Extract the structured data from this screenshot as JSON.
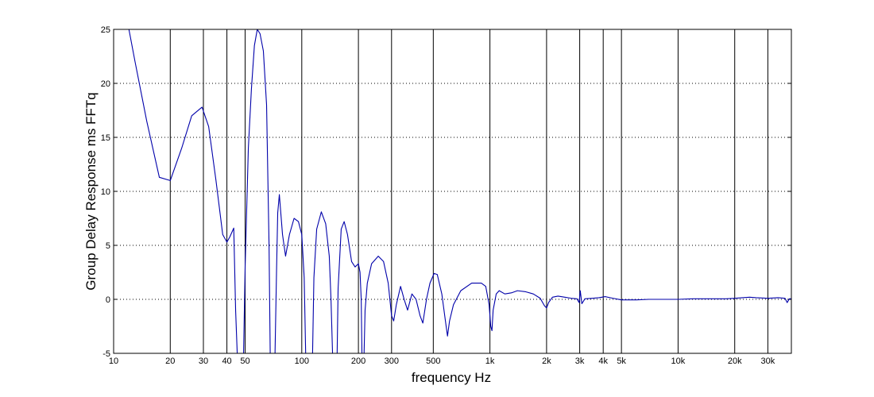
{
  "chart_data": {
    "type": "line",
    "title": "",
    "xlabel": "frequency   Hz",
    "ylabel": "Group Delay Response ms    FFTq",
    "x_scale": "log",
    "xlim": [
      10,
      40000
    ],
    "ylim": [
      -5,
      25
    ],
    "grid": {
      "x": "solid",
      "y": "dotted"
    },
    "x_ticks": [
      {
        "value": 10,
        "label": "10"
      },
      {
        "value": 20,
        "label": "20"
      },
      {
        "value": 30,
        "label": "30"
      },
      {
        "value": 40,
        "label": "40"
      },
      {
        "value": 50,
        "label": "50"
      },
      {
        "value": 100,
        "label": "100"
      },
      {
        "value": 200,
        "label": "200"
      },
      {
        "value": 300,
        "label": "300"
      },
      {
        "value": 500,
        "label": "500"
      },
      {
        "value": 1000,
        "label": "1k"
      },
      {
        "value": 2000,
        "label": "2k"
      },
      {
        "value": 3000,
        "label": "3k"
      },
      {
        "value": 4000,
        "label": "4k"
      },
      {
        "value": 5000,
        "label": "5k"
      },
      {
        "value": 10000,
        "label": "10k"
      },
      {
        "value": 20000,
        "label": "20k"
      },
      {
        "value": 30000,
        "label": "30k"
      }
    ],
    "y_ticks": [
      {
        "value": -5,
        "label": "-5"
      },
      {
        "value": 0,
        "label": "0"
      },
      {
        "value": 5,
        "label": "5"
      },
      {
        "value": 10,
        "label": "10"
      },
      {
        "value": 15,
        "label": "15"
      },
      {
        "value": 20,
        "label": "20"
      },
      {
        "value": 25,
        "label": "25"
      }
    ],
    "series": [
      {
        "color": "#0000aa",
        "points": [
          [
            12,
            25.2
          ],
          [
            13,
            22
          ],
          [
            15,
            16.5
          ],
          [
            17.5,
            11.3
          ],
          [
            20,
            11
          ],
          [
            23,
            14
          ],
          [
            26,
            17
          ],
          [
            29.5,
            17.8
          ],
          [
            32,
            16
          ],
          [
            35,
            11
          ],
          [
            38,
            6
          ],
          [
            40,
            5.3
          ],
          [
            41.5,
            5.8
          ],
          [
            43.5,
            6.6
          ],
          [
            44.5,
            -1
          ],
          [
            45.5,
            -5.5
          ],
          [
            49,
            -5.5
          ],
          [
            50,
            3
          ],
          [
            52,
            14
          ],
          [
            54,
            19.5
          ],
          [
            56,
            23.5
          ],
          [
            58,
            25
          ],
          [
            60,
            24.6
          ],
          [
            62.5,
            23
          ],
          [
            65,
            18
          ],
          [
            67,
            5
          ],
          [
            68,
            -5.5
          ],
          [
            72,
            -5.5
          ],
          [
            73.5,
            3
          ],
          [
            74.5,
            8
          ],
          [
            76,
            9.7
          ],
          [
            79,
            6
          ],
          [
            82,
            4
          ],
          [
            86,
            6
          ],
          [
            91,
            7.5
          ],
          [
            96,
            7.2
          ],
          [
            100,
            6
          ],
          [
            103,
            2
          ],
          [
            105,
            -5.5
          ],
          [
            114,
            -5.5
          ],
          [
            116,
            2
          ],
          [
            120,
            6.5
          ],
          [
            127,
            8.1
          ],
          [
            134,
            7
          ],
          [
            140,
            4
          ],
          [
            143,
            0
          ],
          [
            146,
            -5.5
          ],
          [
            154,
            -5.5
          ],
          [
            156,
            1
          ],
          [
            162,
            6.5
          ],
          [
            168,
            7.2
          ],
          [
            175,
            6
          ],
          [
            184,
            3.5
          ],
          [
            192,
            3
          ],
          [
            200,
            3.3
          ],
          [
            204,
            2.5
          ],
          [
            207,
            0
          ],
          [
            209,
            -5.5
          ],
          [
            214,
            -5.5
          ],
          [
            217,
            -1
          ],
          [
            223,
            1.5
          ],
          [
            235,
            3.3
          ],
          [
            255,
            4
          ],
          [
            272,
            3.5
          ],
          [
            288,
            1.5
          ],
          [
            300,
            -1.5
          ],
          [
            308,
            -2
          ],
          [
            318,
            -0.5
          ],
          [
            335,
            1.2
          ],
          [
            350,
            0
          ],
          [
            365,
            -1
          ],
          [
            385,
            0.5
          ],
          [
            405,
            0
          ],
          [
            425,
            -1.5
          ],
          [
            440,
            -2.2
          ],
          [
            460,
            0
          ],
          [
            480,
            1.5
          ],
          [
            505,
            2.4
          ],
          [
            525,
            2.3
          ],
          [
            555,
            0.5
          ],
          [
            580,
            -2
          ],
          [
            595,
            -3.4
          ],
          [
            610,
            -2
          ],
          [
            640,
            -0.5
          ],
          [
            700,
            0.8
          ],
          [
            800,
            1.5
          ],
          [
            900,
            1.5
          ],
          [
            950,
            1.2
          ],
          [
            990,
            -0.5
          ],
          [
            1010,
            -2.5
          ],
          [
            1025,
            -2.9
          ],
          [
            1040,
            -1
          ],
          [
            1080,
            0.5
          ],
          [
            1120,
            0.8
          ],
          [
            1200,
            0.5
          ],
          [
            1300,
            0.6
          ],
          [
            1400,
            0.8
          ],
          [
            1550,
            0.7
          ],
          [
            1700,
            0.5
          ],
          [
            1850,
            0.1
          ],
          [
            1950,
            -0.6
          ],
          [
            2000,
            -0.8
          ],
          [
            2050,
            -0.3
          ],
          [
            2150,
            0.2
          ],
          [
            2300,
            0.3
          ],
          [
            2500,
            0.2
          ],
          [
            2700,
            0.1
          ],
          [
            2900,
            0.05
          ],
          [
            2980,
            -0.3
          ],
          [
            3020,
            0.8
          ],
          [
            3080,
            -0.4
          ],
          [
            3200,
            0.05
          ],
          [
            3500,
            0.1
          ],
          [
            3800,
            0.15
          ],
          [
            4100,
            0.25
          ],
          [
            4500,
            0.1
          ],
          [
            5000,
            -0.05
          ],
          [
            6000,
            -0.05
          ],
          [
            7000,
            0
          ],
          [
            8500,
            0
          ],
          [
            10000,
            0
          ],
          [
            12000,
            0.05
          ],
          [
            15000,
            0.05
          ],
          [
            18000,
            0.05
          ],
          [
            20000,
            0.1
          ],
          [
            22000,
            0.15
          ],
          [
            24000,
            0.2
          ],
          [
            26000,
            0.15
          ],
          [
            30000,
            0.1
          ],
          [
            34000,
            0.15
          ],
          [
            37000,
            0.1
          ],
          [
            38000,
            -0.3
          ],
          [
            39000,
            0.05
          ],
          [
            40000,
            0.05
          ]
        ]
      }
    ]
  }
}
